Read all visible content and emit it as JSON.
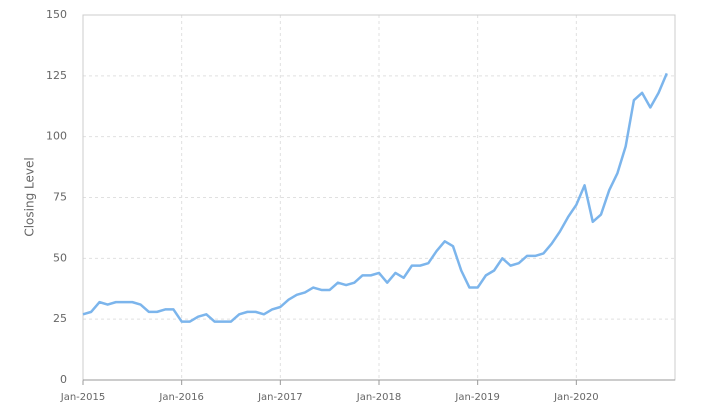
{
  "chart_data": {
    "type": "line",
    "y_label": "Closing Level",
    "x": [
      "2015-01",
      "2015-02",
      "2015-03",
      "2015-04",
      "2015-05",
      "2015-06",
      "2015-07",
      "2015-08",
      "2015-09",
      "2015-10",
      "2015-11",
      "2015-12",
      "2016-01",
      "2016-02",
      "2016-03",
      "2016-04",
      "2016-05",
      "2016-06",
      "2016-07",
      "2016-08",
      "2016-09",
      "2016-10",
      "2016-11",
      "2016-12",
      "2017-01",
      "2017-02",
      "2017-03",
      "2017-04",
      "2017-05",
      "2017-06",
      "2017-07",
      "2017-08",
      "2017-09",
      "2017-10",
      "2017-11",
      "2017-12",
      "2018-01",
      "2018-02",
      "2018-03",
      "2018-04",
      "2018-05",
      "2018-06",
      "2018-07",
      "2018-08",
      "2018-09",
      "2018-10",
      "2018-11",
      "2018-12",
      "2019-01",
      "2019-02",
      "2019-03",
      "2019-04",
      "2019-05",
      "2019-06",
      "2019-07",
      "2019-08",
      "2019-09",
      "2019-10",
      "2019-11",
      "2019-12",
      "2020-01",
      "2020-02",
      "2020-03",
      "2020-04",
      "2020-05",
      "2020-06",
      "2020-07",
      "2020-08",
      "2020-09",
      "2020-10",
      "2020-11",
      "2020-12"
    ],
    "series": [
      {
        "color": "#7cb5ec",
        "values": [
          27,
          28,
          32,
          31,
          32,
          32,
          32,
          31,
          28,
          28,
          29,
          29,
          24,
          24,
          26,
          27,
          24,
          24,
          24,
          27,
          28,
          28,
          27,
          29,
          30,
          33,
          35,
          36,
          38,
          37,
          37,
          40,
          39,
          40,
          43,
          43,
          44,
          40,
          44,
          42,
          47,
          47,
          48,
          53,
          57,
          55,
          45,
          38,
          38,
          43,
          45,
          50,
          47,
          48,
          51,
          51,
          52,
          56,
          61,
          67,
          72,
          80,
          65,
          68,
          78,
          85,
          96,
          115,
          118,
          112,
          118,
          126
        ]
      }
    ],
    "xlim": [
      "2015-01",
      "2021-01"
    ],
    "xticks": [
      {
        "value": "2015-01",
        "label": "Jan-2015"
      },
      {
        "value": "2016-01",
        "label": "Jan-2016"
      },
      {
        "value": "2017-01",
        "label": "Jan-2017"
      },
      {
        "value": "2018-01",
        "label": "Jan-2018"
      },
      {
        "value": "2019-01",
        "label": "Jan-2019"
      },
      {
        "value": "2020-01",
        "label": "Jan-2020"
      }
    ],
    "ylim": [
      0,
      150
    ],
    "yticks": [
      0,
      25,
      50,
      75,
      100,
      125,
      150
    ],
    "grid": true
  }
}
